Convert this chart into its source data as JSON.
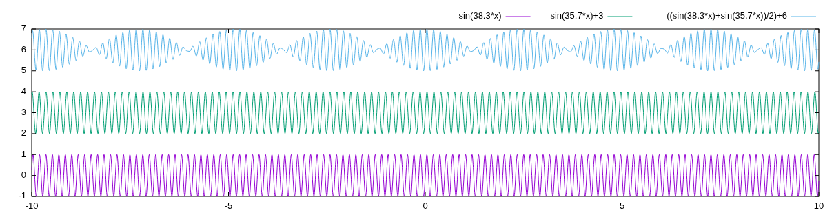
{
  "chart_data": {
    "type": "line",
    "xlim": [
      -10,
      10
    ],
    "xticks": [
      -10,
      -5,
      0,
      5,
      10
    ],
    "ylim": [
      -1,
      7
    ],
    "yticks": [
      -1,
      0,
      1,
      2,
      3,
      4,
      5,
      6,
      7
    ],
    "legend": "top",
    "series": [
      {
        "name": "sin(38.3*x)",
        "color": "#9400d3",
        "x": [
          -10,
          -9.966,
          -9.884,
          -9.802,
          -9.72,
          -9.638,
          -9.556,
          -9.474,
          -9.392,
          -9.31,
          -9.228,
          -9.146,
          -9.064,
          -8.982,
          -8.9,
          -8.818,
          -8.736,
          -8.654,
          -8.572,
          -8.49,
          -8.407,
          -8.325,
          -8.243,
          -8.162,
          -8.08,
          -7.998,
          -7.915,
          -7.833,
          -7.751,
          -7.669,
          -7.587,
          -7.505,
          -7.423,
          -7.341,
          -7.259,
          -7.177,
          -7.095,
          -7.013,
          -6.931,
          -6.849,
          -6.767,
          -6.685,
          -6.603,
          -6.521,
          -6.439,
          -6.357,
          -6.275,
          -6.193,
          -6.111,
          -6.029,
          -5.947,
          -5.865,
          -5.783,
          -5.701,
          -5.619,
          -5.537,
          -5.455,
          -5.373,
          -5.291,
          -5.209,
          -5.127,
          -5.045,
          -4.963,
          -4.881,
          -4.799,
          -4.717,
          -4.634,
          -4.552,
          -4.47,
          -4.388,
          -4.306,
          -4.224,
          -4.142,
          -4.06,
          -3.978,
          -3.896,
          -3.814,
          -3.732,
          -3.65,
          -3.568,
          -3.486,
          -3.404,
          -3.322,
          -3.24,
          -3.158,
          -3.076,
          -2.994,
          -2.912,
          -2.83,
          -2.748,
          -2.666,
          -2.584,
          -2.502,
          -2.42,
          -2.338,
          -2.256,
          -2.174,
          -2.092,
          -2.01,
          -1.928,
          -1.846,
          -1.764,
          -1.682,
          -1.6,
          -1.517,
          -1.435,
          -1.353,
          -1.271,
          -1.189,
          -1.107,
          -1.025,
          -0.943,
          -0.861,
          -0.779,
          -0.697,
          -0.615,
          -0.533,
          -0.451,
          -0.369,
          -0.287,
          -0.205,
          -0.123,
          -0.041,
          0.041,
          0.123,
          0.205,
          0.287,
          0.369,
          0.451,
          0.533,
          0.615,
          0.697,
          0.779,
          0.861,
          0.943,
          1.025,
          1.107,
          1.189,
          1.271,
          1.353,
          1.435,
          1.517,
          1.6,
          1.682,
          1.764,
          1.846,
          1.928,
          2.01,
          2.092,
          2.174,
          2.256,
          2.338,
          2.42,
          2.502,
          2.584,
          2.666,
          2.748,
          2.83,
          2.912,
          2.994,
          3.076,
          3.158,
          3.24,
          3.322,
          3.404,
          3.486,
          3.568,
          3.65,
          3.732,
          3.814,
          3.896,
          3.978,
          4.06,
          4.142,
          4.224,
          4.306,
          4.388,
          4.47,
          4.552,
          4.634,
          4.717,
          4.799,
          4.881,
          4.963,
          5.045,
          5.127,
          5.209,
          5.291,
          5.373,
          5.455,
          5.537,
          5.619,
          5.701,
          5.783,
          5.865,
          5.947,
          6.029,
          6.111,
          6.193,
          6.275,
          6.357,
          6.439,
          6.521,
          6.603,
          6.685,
          6.767,
          6.849,
          6.931,
          7.013,
          7.095,
          7.177,
          7.259,
          7.341,
          7.423,
          7.505,
          7.587,
          7.669,
          7.751,
          7.833,
          7.915,
          7.998,
          8.08,
          8.162,
          8.243,
          8.325,
          8.407,
          8.49,
          8.572,
          8.654,
          8.736,
          8.818,
          8.9,
          8.982,
          9.064,
          9.146,
          9.228,
          9.31,
          9.392,
          9.474,
          9.556,
          9.638,
          9.72,
          9.802,
          9.884,
          9.966,
          10
        ],
        "values": [
          0.27,
          1,
          -1,
          1,
          -1,
          1,
          -1,
          1,
          -1,
          1,
          -1,
          1,
          -1,
          1,
          -1,
          1,
          -1,
          1,
          -1,
          1,
          -1,
          1,
          -1,
          1,
          -1,
          1,
          -1,
          1,
          -1,
          1,
          -1,
          1,
          -1,
          1,
          -1,
          1,
          -1,
          1,
          -1,
          1,
          -1,
          1,
          -1,
          1,
          -1,
          1,
          -1,
          1,
          -1,
          1,
          -1,
          1,
          -1,
          1,
          -1,
          1,
          -1,
          1,
          -1,
          1,
          -1,
          1,
          -1,
          1,
          -1,
          1,
          -1,
          1,
          -1,
          1,
          -1,
          1,
          -1,
          1,
          -1,
          1,
          -1,
          1,
          -1,
          1,
          -1,
          1,
          -1,
          1,
          -1,
          1,
          -1,
          1,
          -1,
          1,
          -1,
          1,
          -1,
          1,
          -1,
          1,
          -1,
          1,
          -1,
          1,
          -1,
          1,
          -1,
          1,
          -1,
          1,
          -1,
          1,
          -1,
          1,
          -1,
          1,
          -1,
          1,
          -1,
          1,
          -1,
          1,
          -1,
          1,
          -1,
          1,
          -1,
          1,
          -1,
          1,
          -1,
          1,
          -1,
          1,
          -1,
          1,
          -1,
          1,
          -1,
          1,
          -1,
          1,
          -1,
          1,
          -1,
          1,
          -1,
          1,
          -1,
          1,
          -1,
          1,
          -1,
          1,
          -1,
          1,
          -1,
          1,
          -1,
          1,
          -1,
          1,
          -1,
          1,
          -1,
          1,
          -1,
          1,
          -1,
          1,
          -1,
          1,
          -1,
          1,
          -1,
          1,
          -1,
          1,
          -1,
          1,
          -1,
          1,
          -1,
          1,
          -1,
          1,
          -1,
          1,
          -1,
          1,
          -1,
          1,
          -1,
          1,
          -1,
          1,
          -1,
          1,
          -1,
          1,
          -1,
          1,
          -1,
          1,
          -1,
          1,
          -1,
          1,
          -1,
          1,
          -1,
          1,
          -1,
          1,
          -1,
          1,
          -1,
          1,
          -1,
          1,
          -1,
          1,
          -1,
          1,
          -1,
          1,
          -1,
          1,
          -1,
          1,
          -1,
          1,
          -1,
          1,
          -1,
          1,
          -1,
          1,
          -1,
          1,
          -1,
          1,
          -1,
          1,
          -1,
          1,
          -1,
          1,
          -1,
          -0.27
        ]
      },
      {
        "name": "sin(35.7*x)+3",
        "color": "#009e73",
        "x": [
          -10,
          -9.988,
          -9.9,
          -9.812,
          -9.724,
          -9.636,
          -9.548,
          -9.46,
          -9.372,
          -9.284,
          -9.196,
          -9.108,
          -9.02,
          -8.932,
          -8.844,
          -8.756,
          -8.668,
          -8.58,
          -8.492,
          -8.404,
          -8.316,
          -8.228,
          -8.14,
          -8.052,
          -7.964,
          -7.876,
          -7.788,
          -7.7,
          -7.612,
          -7.524,
          -7.436,
          -7.348,
          -7.26,
          -7.172,
          -7.084,
          -6.996,
          -6.908,
          -6.82,
          -6.732,
          -6.644,
          -6.556,
          -6.468,
          -6.38,
          -6.292,
          -6.204,
          -6.116,
          -6.028,
          -5.94,
          -5.852,
          -5.764,
          -5.676,
          -5.588,
          -5.5,
          -5.412,
          -5.324,
          -5.236,
          -5.148,
          -5.06,
          -4.972,
          -4.884,
          -4.796,
          -4.708,
          -4.62,
          -4.532,
          -4.444,
          -4.356,
          -4.268,
          -4.18,
          -4.092,
          -4.004,
          -3.916,
          -3.828,
          -3.74,
          -3.652,
          -3.564,
          -3.476,
          -3.388,
          -3.3,
          -3.212,
          -3.124,
          -3.036,
          -2.948,
          -2.86,
          -2.772,
          -2.684,
          -2.596,
          -2.508,
          -2.42,
          -2.332,
          -2.244,
          -2.156,
          -2.068,
          -1.98,
          -1.892,
          -1.804,
          -1.716,
          -1.628,
          -1.54,
          -1.452,
          -1.364,
          -1.276,
          -1.188,
          -1.1,
          -1.012,
          -0.924,
          -0.836,
          -0.748,
          -0.66,
          -0.572,
          -0.484,
          -0.396,
          -0.308,
          -0.22,
          -0.132,
          -0.044,
          0.044,
          0.132,
          0.22,
          0.308,
          0.396,
          0.484,
          0.572,
          0.66,
          0.748,
          0.836,
          0.924,
          1.012,
          1.1,
          1.188,
          1.276,
          1.364,
          1.452,
          1.54,
          1.628,
          1.716,
          1.804,
          1.892,
          1.98,
          2.068,
          2.156,
          2.244,
          2.332,
          2.42,
          2.508,
          2.596,
          2.684,
          2.772,
          2.86,
          2.948,
          3.036,
          3.124,
          3.212,
          3.3,
          3.388,
          3.476,
          3.564,
          3.652,
          3.74,
          3.828,
          3.916,
          4.004,
          4.092,
          4.18,
          4.268,
          4.356,
          4.444,
          4.532,
          4.62,
          4.708,
          4.796,
          4.884,
          4.972,
          5.06,
          5.148,
          5.236,
          5.324,
          5.412,
          5.5,
          5.588,
          5.676,
          5.764,
          5.852,
          5.94,
          6.028,
          6.116,
          6.204,
          6.292,
          6.38,
          6.468,
          6.556,
          6.644,
          6.732,
          6.82,
          6.908,
          6.996,
          7.084,
          7.172,
          7.26,
          7.348,
          7.436,
          7.524,
          7.612,
          7.7,
          7.788,
          7.876,
          7.964,
          8.052,
          8.14,
          8.228,
          8.316,
          8.404,
          8.492,
          8.58,
          8.668,
          8.756,
          8.844,
          8.932,
          9.02,
          9.108,
          9.196,
          9.284,
          9.372,
          9.46,
          9.548,
          9.636,
          9.724,
          9.812,
          9.9,
          9.988,
          10
        ],
        "values": [
          3.91,
          4,
          2,
          4,
          2,
          4,
          2,
          4,
          2,
          4,
          2,
          4,
          2,
          4,
          2,
          4,
          2,
          4,
          2,
          4,
          2,
          4,
          2,
          4,
          2,
          4,
          2,
          4,
          2,
          4,
          2,
          4,
          2,
          4,
          2,
          4,
          2,
          4,
          2,
          4,
          2,
          4,
          2,
          4,
          2,
          4,
          2,
          4,
          2,
          4,
          2,
          4,
          2,
          4,
          2,
          4,
          2,
          4,
          2,
          4,
          2,
          4,
          2,
          4,
          2,
          4,
          2,
          4,
          2,
          4,
          2,
          4,
          2,
          4,
          2,
          4,
          2,
          4,
          2,
          4,
          2,
          4,
          2,
          4,
          2,
          4,
          2,
          4,
          2,
          4,
          2,
          4,
          2,
          4,
          2,
          4,
          2,
          4,
          2,
          4,
          2,
          4,
          2,
          4,
          2,
          4,
          2,
          4,
          2,
          4,
          2,
          4,
          2,
          4,
          2,
          4,
          2,
          4,
          2,
          4,
          2,
          4,
          2,
          4,
          2,
          4,
          2,
          4,
          2,
          4,
          2,
          4,
          2,
          4,
          2,
          4,
          2,
          4,
          2,
          4,
          2,
          4,
          2,
          4,
          2,
          4,
          2,
          4,
          2,
          4,
          2,
          4,
          2,
          4,
          2,
          4,
          2,
          4,
          2,
          4,
          2,
          4,
          2,
          4,
          2,
          4,
          2,
          4,
          2,
          4,
          2,
          4,
          2,
          4,
          2,
          4,
          2,
          4,
          2,
          4,
          2,
          4,
          2,
          4,
          2,
          4,
          2,
          4,
          2,
          4,
          2,
          4,
          2,
          4,
          2,
          4,
          2,
          4,
          2,
          4,
          2,
          4,
          2,
          4,
          2,
          4,
          2,
          4,
          2,
          4,
          2,
          4,
          2,
          4,
          2,
          4,
          2,
          4,
          2,
          4,
          2,
          4,
          2,
          4,
          2,
          4,
          2,
          4,
          2,
          2.09
        ]
      },
      {
        "name": "((sin(38.3*x)+sin(35.7*x))/2)+6",
        "color": "#56b4e9",
        "x": [
          -10,
          -9.977,
          -9.892,
          -9.807,
          -9.722,
          -9.637,
          -9.552,
          -9.467,
          -9.382,
          -9.297,
          -9.213,
          -9.128,
          -9.043,
          -8.958,
          -8.873,
          -8.788,
          -8.703,
          -8.618,
          -8.533,
          -8.448,
          -8.363,
          -8.279,
          -8.194,
          -8.109,
          -8.024,
          -7.939,
          -7.854,
          -7.769,
          -7.684,
          -7.599,
          -7.514,
          -7.429,
          -7.345,
          -7.26,
          -7.175,
          -7.09,
          -7.005,
          -6.92,
          -6.835,
          -6.75,
          -6.665,
          -6.58,
          -6.495,
          -6.411,
          -6.326,
          -6.241,
          -6.156,
          -6.071,
          -5.986,
          -5.901,
          -5.816,
          -5.731,
          -5.646,
          -5.561,
          -5.477,
          -5.392,
          -5.307,
          -5.222,
          -5.137,
          -5.052,
          -4.967,
          -4.882,
          -4.797,
          -4.712,
          -4.627,
          -4.543,
          -4.458,
          -4.373,
          -4.288,
          -4.203,
          -4.118,
          -4.033,
          -3.948,
          -3.863,
          -3.778,
          -3.694,
          -3.609,
          -3.524,
          -3.439,
          -3.354,
          -3.269,
          -3.184,
          -3.099,
          -3.014,
          -2.929,
          -2.844,
          -2.759,
          -2.675,
          -2.59,
          -2.505,
          -2.42,
          -2.335,
          -2.25,
          -2.165,
          -2.08,
          -1.995,
          -1.91,
          -1.825,
          -1.741,
          -1.656,
          -1.571,
          -1.486,
          -1.401,
          -1.316,
          -1.231,
          -1.146,
          -1.061,
          -0.976,
          -0.892,
          -0.807,
          -0.722,
          -0.637,
          -0.552,
          -0.467,
          -0.382,
          -0.297,
          -0.212,
          -0.127,
          -0.042,
          0.042,
          0.127,
          0.212,
          0.297,
          0.382,
          0.467,
          0.552,
          0.637,
          0.722,
          0.807,
          0.892,
          0.976,
          1.061,
          1.146,
          1.231,
          1.316,
          1.401,
          1.486,
          1.571,
          1.656,
          1.741,
          1.825,
          1.91,
          1.995,
          2.08,
          2.165,
          2.25,
          2.335,
          2.42,
          2.505,
          2.59,
          2.675,
          2.759,
          2.844,
          2.929,
          3.014,
          3.099,
          3.184,
          3.269,
          3.354,
          3.439,
          3.524,
          3.609,
          3.694,
          3.778,
          3.863,
          3.948,
          4.033,
          4.118,
          4.203,
          4.288,
          4.373,
          4.458,
          4.543,
          4.627,
          4.712,
          4.797,
          4.882,
          4.967,
          5.052,
          5.137,
          5.222,
          5.307,
          5.392,
          5.477,
          5.561,
          5.646,
          5.731,
          5.816,
          5.901,
          5.986,
          6.071,
          6.156,
          6.241,
          6.326,
          6.411,
          6.495,
          6.58,
          6.665,
          6.75,
          6.835,
          6.92,
          7.005,
          7.09,
          7.175,
          7.26,
          7.345,
          7.429,
          7.514,
          7.599,
          7.684,
          7.769,
          7.854,
          7.939,
          8.024,
          8.109,
          8.194,
          8.279,
          8.363,
          8.448,
          8.533,
          8.618,
          8.703,
          8.788,
          8.873,
          8.958,
          9.043,
          9.128,
          9.213,
          9.297,
          9.382,
          9.467,
          9.552,
          9.637,
          9.722,
          9.807,
          9.892,
          9.977,
          10
        ],
        "values": [
          6.59,
          6.92,
          5.04,
          6.98,
          5.0,
          7.0,
          5.01,
          6.97,
          5.07,
          6.89,
          5.17,
          6.76,
          5.31,
          6.6,
          5.49,
          6.42,
          5.69,
          6.21,
          5.9,
          5.99,
          6.12,
          5.77,
          6.34,
          5.56,
          6.54,
          5.37,
          6.71,
          5.22,
          6.84,
          5.1,
          6.94,
          5.03,
          6.99,
          5.0,
          7.0,
          5.02,
          6.95,
          5.09,
          6.86,
          5.2,
          6.73,
          5.36,
          6.56,
          5.54,
          6.36,
          5.74,
          6.15,
          5.96,
          5.93,
          6.18,
          5.71,
          6.39,
          5.51,
          6.58,
          5.33,
          6.75,
          5.18,
          6.88,
          5.08,
          6.96,
          5.02,
          7.0,
          5.0,
          6.99,
          5.04,
          6.93,
          5.12,
          6.83,
          5.24,
          6.68,
          5.4,
          6.51,
          5.59,
          6.31,
          5.8,
          6.09,
          6.02,
          5.87,
          6.24,
          5.66,
          6.45,
          5.46,
          6.63,
          5.29,
          6.79,
          5.15,
          6.9,
          5.06,
          6.97,
          5.01,
          7.0,
          5.01,
          6.98,
          5.05,
          6.91,
          5.15,
          6.79,
          5.28,
          6.64,
          5.45,
          6.45,
          5.65,
          6.25,
          5.86,
          6.03,
          6.08,
          5.81,
          6.3,
          5.6,
          6.5,
          5.41,
          6.68,
          5.25,
          6.82,
          5.12,
          6.93,
          5.04,
          6.99,
          5.0,
          7.0,
          5.01,
          6.96,
          5.07,
          6.88,
          5.18,
          6.75,
          5.32,
          6.59,
          5.5,
          6.4,
          5.7,
          6.19,
          5.92,
          5.97,
          6.14,
          5.75,
          6.35,
          5.55,
          6.55,
          5.36,
          6.72,
          5.21,
          6.85,
          5.09,
          6.95,
          5.02,
          6.99,
          5.0,
          6.99,
          5.03,
          6.94,
          5.1,
          6.85,
          5.21,
          6.71,
          5.37,
          6.54,
          5.55,
          6.34,
          5.76,
          6.13,
          5.98,
          5.91,
          6.2,
          5.69,
          6.41,
          5.49,
          6.6,
          5.32,
          6.76,
          5.17,
          6.88,
          5.07,
          6.96,
          5.01,
          7.0,
          5.0,
          6.98,
          5.04,
          6.92,
          5.12,
          6.82,
          5.25,
          6.67,
          5.42,
          6.49,
          5.61,
          6.29,
          5.82,
          6.07,
          6.04,
          5.85,
          6.26,
          5.64,
          6.46,
          5.44,
          6.64,
          5.27,
          6.8,
          5.14,
          6.91,
          5.05,
          6.98,
          5.0,
          7.0,
          5.01,
          6.97,
          5.06,
          6.9,
          5.16,
          6.78,
          5.29,
          6.63,
          5.46,
          6.44,
          5.66,
          6.23,
          5.88,
          6.01,
          6.1,
          5.79,
          6.31,
          5.58,
          6.51,
          5.4,
          6.69,
          5.24,
          6.83,
          5.11,
          6.93,
          5.03,
          6.99,
          5.0,
          7.0,
          5.02,
          6.96,
          5.08,
          5.41
        ]
      }
    ]
  }
}
